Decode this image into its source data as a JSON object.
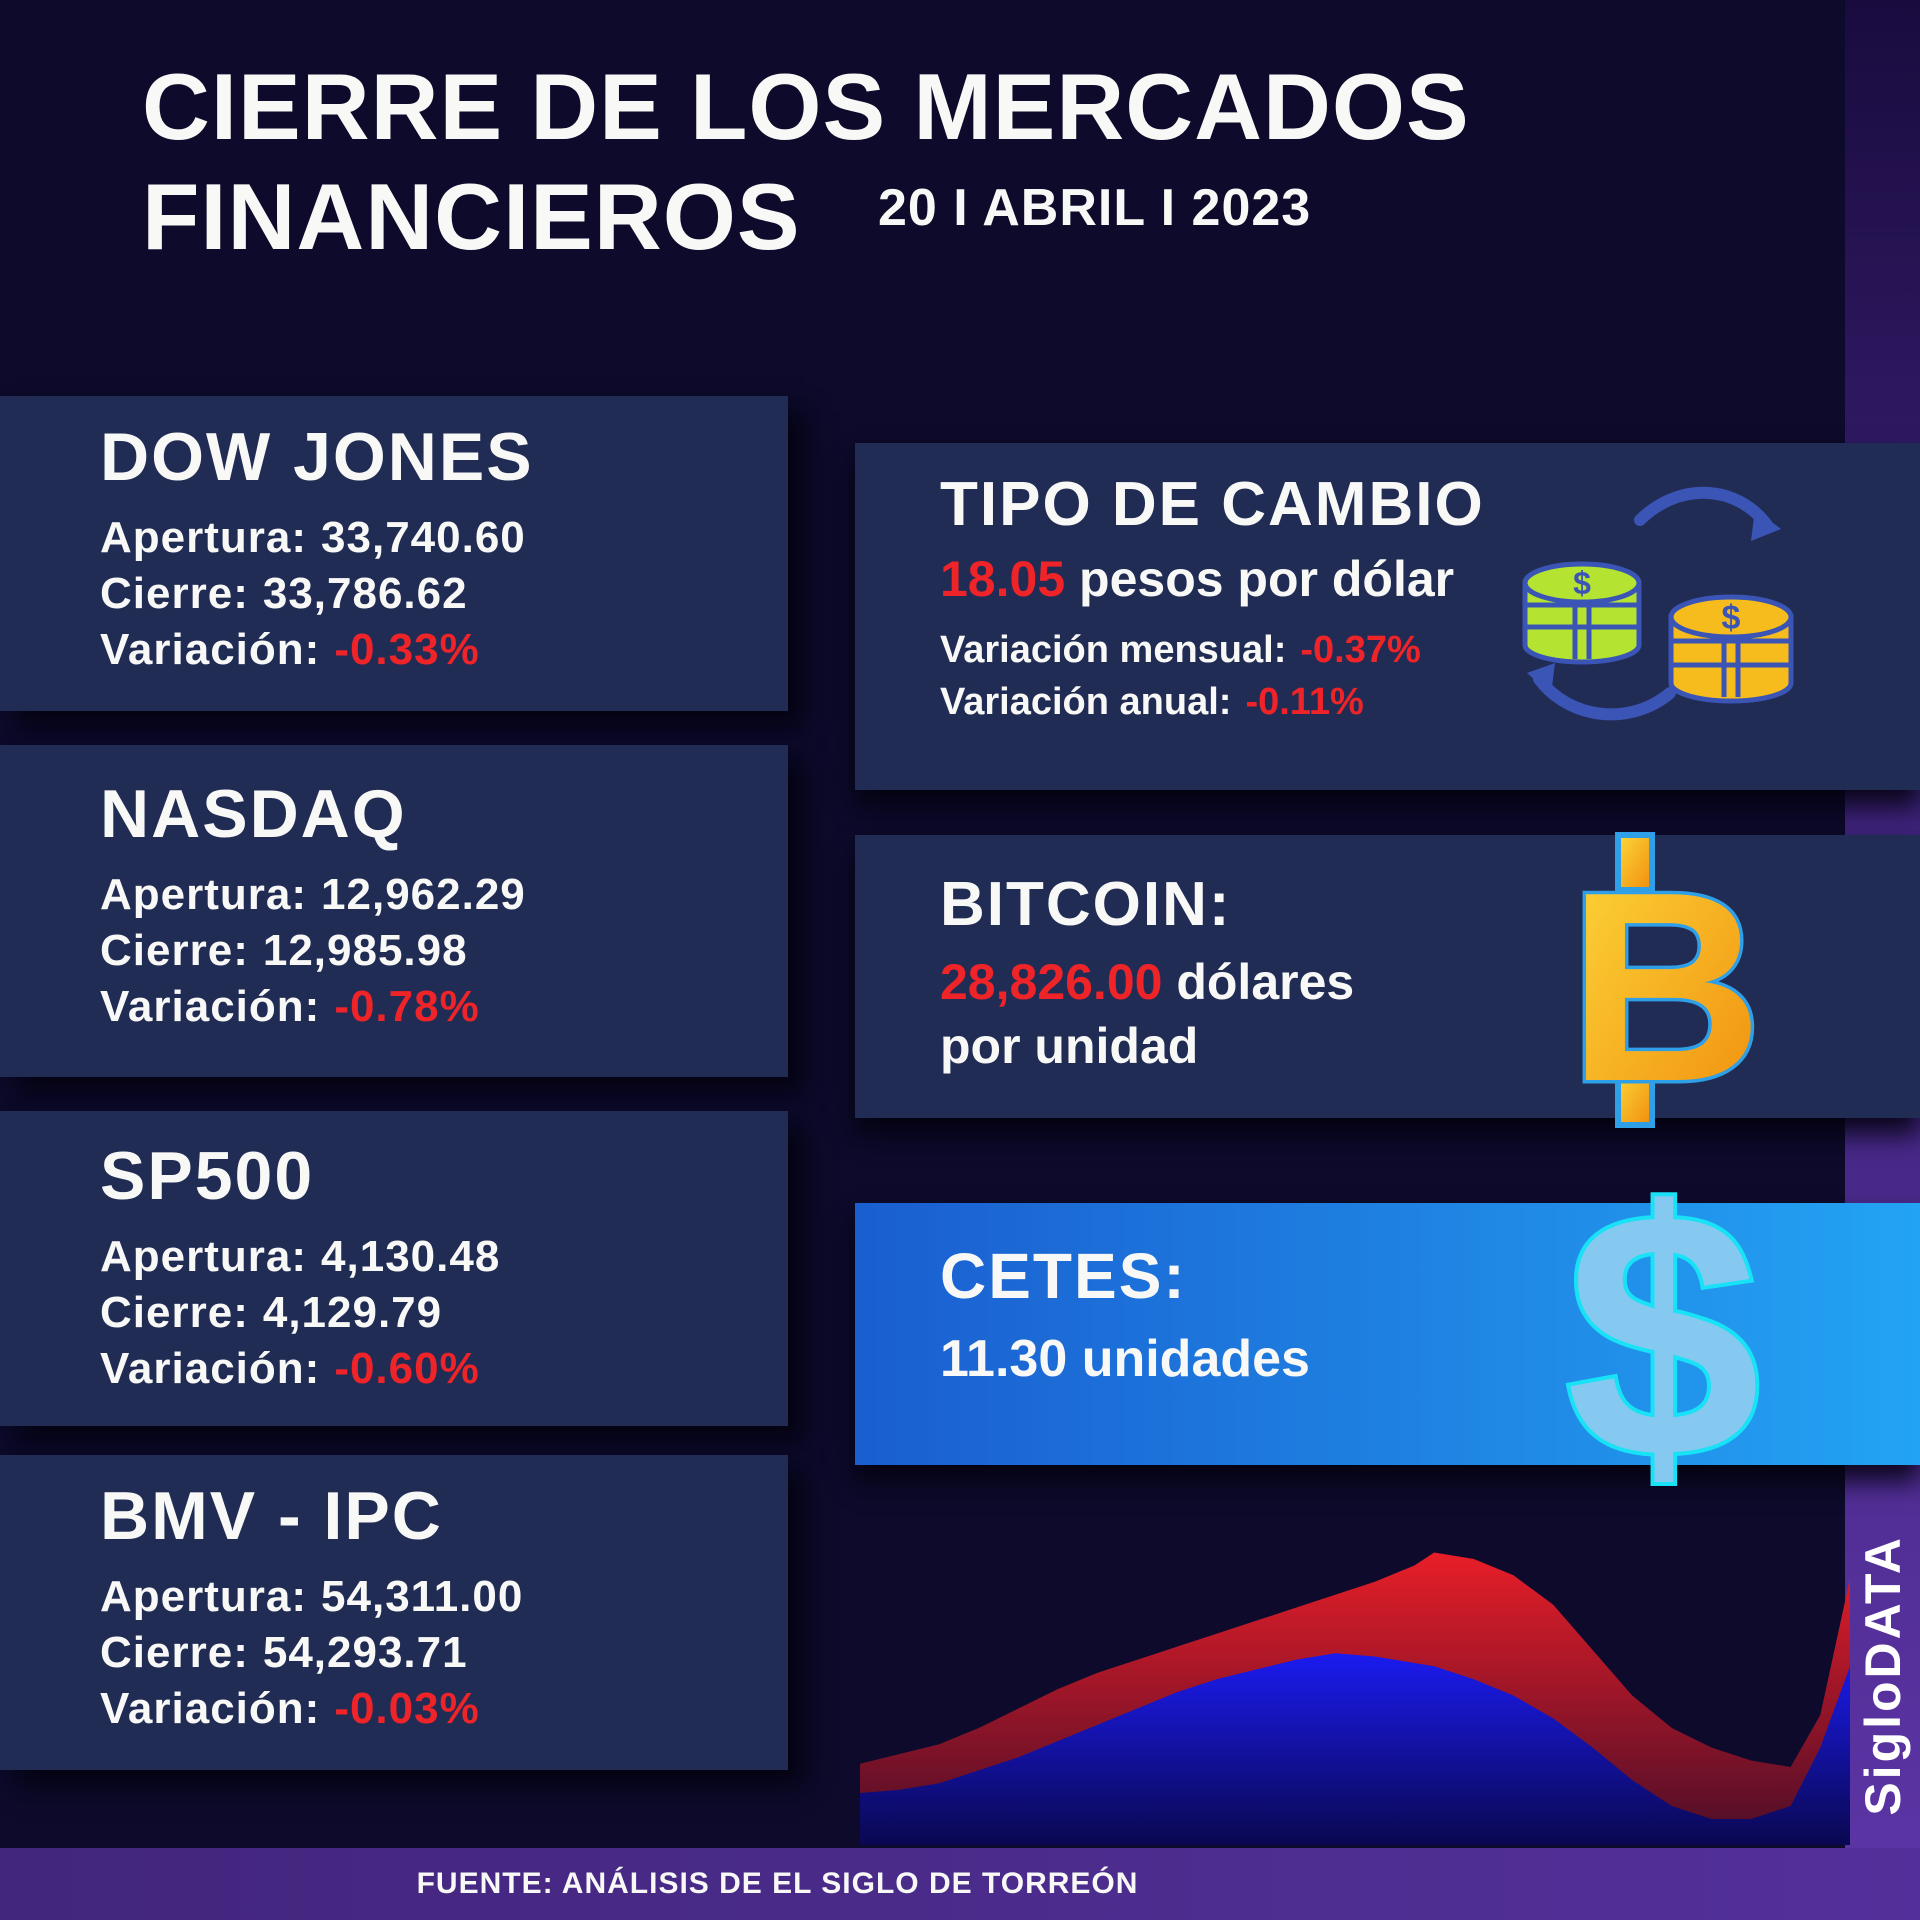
{
  "header": {
    "title_line1": "CIERRE DE LOS MERCADOS",
    "title_line2": "FINANCIEROS",
    "date": "20 I ABRIL I 2023"
  },
  "indices": [
    {
      "name": "DOW JONES",
      "apertura_label": "Apertura:",
      "apertura": "33,740.60",
      "cierre_label": "Cierre:",
      "cierre": "33,786.62",
      "variacion_label": "Variación:",
      "variacion": "-0.33%"
    },
    {
      "name": "NASDAQ",
      "apertura_label": "Apertura:",
      "apertura": "12,962.29",
      "cierre_label": "Cierre:",
      "cierre": "12,985.98",
      "variacion_label": "Variación:",
      "variacion": "-0.78%"
    },
    {
      "name": "SP500",
      "apertura_label": "Apertura:",
      "apertura": "4,130.48",
      "cierre_label": "Cierre:",
      "cierre": "4,129.79",
      "variacion_label": "Variación:",
      "variacion": "-0.60%"
    },
    {
      "name": "BMV - IPC",
      "apertura_label": "Apertura:",
      "apertura": "54,311.00",
      "cierre_label": "Cierre:",
      "cierre": "54,293.71",
      "variacion_label": "Variación:",
      "variacion": "-0.03%"
    }
  ],
  "exchange": {
    "title": "TIPO DE CAMBIO",
    "rate": "18.05",
    "rate_suffix": "pesos por dólar",
    "monthly_label": "Variación mensual:",
    "monthly": "-0.37%",
    "annual_label": "Variación anual:",
    "annual": "-0.11%"
  },
  "bitcoin": {
    "title": "BITCOIN:",
    "price": "28,826.00",
    "price_suffix": "dólares",
    "unit_line": "por unidad"
  },
  "cetes": {
    "title": "CETES:",
    "value": "11.30 unidades"
  },
  "brand": {
    "vertical_label": "SigloDATA"
  },
  "footer": {
    "source": "FUENTE: ANÁLISIS DE EL SIGLO DE TORREÓN"
  },
  "colors": {
    "background": "#0d0a2b",
    "panel": "#212c55",
    "accent_red": "#ee2429",
    "white": "#f8f8f6",
    "cetes_gradient_start": "#1a5ed0",
    "cetes_gradient_end": "#23a3f3",
    "purple_strip": "#5d35a6",
    "footer_purple": "#4a2b8a",
    "coin_green": "#b5e332",
    "coin_gold": "#f6bb1c",
    "icon_blue": "#3a55b5",
    "bitcoin_gold_top": "#fdd83a",
    "bitcoin_gold_bottom": "#f08c0c",
    "bitcoin_outline": "#2f9fe8",
    "dollar_fill": "#85c8f0",
    "dollar_outline": "#18e2f6"
  },
  "chart_data": {
    "type": "area",
    "title": "",
    "xlabel": "",
    "ylabel": "",
    "axes": "none",
    "legend": "none",
    "note_units": "decorative market trend, values normalized 0-100",
    "x_percent": [
      0,
      4,
      8,
      12,
      16,
      20,
      24,
      28,
      32,
      36,
      40,
      44,
      48,
      52,
      56,
      58,
      62,
      66,
      70,
      74,
      78,
      82,
      86,
      90,
      94,
      97,
      100
    ],
    "series": [
      {
        "name": "red-area",
        "color_top": "#e81e28",
        "color_bottom": "#4a0d28",
        "values_percent": [
          25,
          28,
          31,
          36,
          42,
          48,
          53,
          57,
          61,
          65,
          69,
          73,
          77,
          81,
          86,
          90,
          88,
          83,
          74,
          60,
          46,
          36,
          30,
          26,
          24,
          40,
          82
        ]
      },
      {
        "name": "blue-area",
        "color_top": "#1b1bf0",
        "color_bottom": "#0a0850",
        "values_percent": [
          16,
          17,
          19,
          23,
          27,
          32,
          37,
          42,
          47,
          51,
          54,
          57,
          59,
          58,
          56,
          55,
          51,
          46,
          39,
          30,
          20,
          12,
          8,
          8,
          12,
          30,
          55
        ]
      }
    ]
  }
}
